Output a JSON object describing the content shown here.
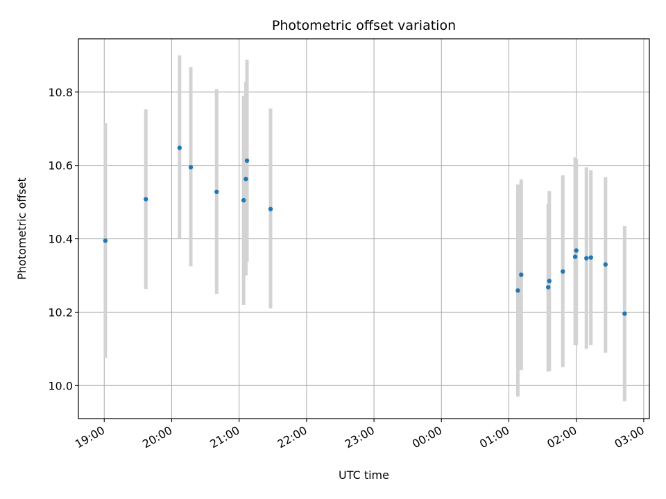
{
  "chart_data": {
    "type": "scatter",
    "title": "Photometric offset variation",
    "xlabel": "UTC time",
    "ylabel": "Photometric offset",
    "xlim": [
      "18:37",
      "03:05"
    ],
    "ylim": [
      9.91,
      10.945
    ],
    "grid": true,
    "x_ticks": [
      "19:00",
      "20:00",
      "21:00",
      "22:00",
      "23:00",
      "00:00",
      "01:00",
      "02:00",
      "03:00"
    ],
    "y_ticks": [
      "10.0",
      "10.2",
      "10.4",
      "10.6",
      "10.8"
    ],
    "colors": {
      "points": "#1f77b4",
      "error_bars": "#d3d3d3",
      "grid": "#b0b0b0"
    },
    "series": [
      {
        "points": [
          {
            "x": "19:01",
            "y": 10.395,
            "y_low": 10.075,
            "y_high": 10.715
          },
          {
            "x": "19:37",
            "y": 10.508,
            "y_low": 10.263,
            "y_high": 10.753
          },
          {
            "x": "20:07",
            "y": 10.648,
            "y_low": 10.4,
            "y_high": 10.9
          },
          {
            "x": "20:17",
            "y": 10.595,
            "y_low": 10.325,
            "y_high": 10.868
          },
          {
            "x": "20:40",
            "y": 10.528,
            "y_low": 10.25,
            "y_high": 10.808
          },
          {
            "x": "21:04",
            "y": 10.505,
            "y_low": 10.22,
            "y_high": 10.79
          },
          {
            "x": "21:06",
            "y": 10.563,
            "y_low": 10.3,
            "y_high": 10.828
          },
          {
            "x": "21:07",
            "y": 10.613,
            "y_low": 10.337,
            "y_high": 10.888
          },
          {
            "x": "21:28",
            "y": 10.481,
            "y_low": 10.21,
            "y_high": 10.755
          },
          {
            "x": "01:08",
            "y": 10.259,
            "y_low": 9.97,
            "y_high": 10.548
          },
          {
            "x": "01:11",
            "y": 10.302,
            "y_low": 10.042,
            "y_high": 10.562
          },
          {
            "x": "01:35",
            "y": 10.268,
            "y_low": 10.038,
            "y_high": 10.495
          },
          {
            "x": "01:36",
            "y": 10.285,
            "y_low": 10.04,
            "y_high": 10.53
          },
          {
            "x": "01:48",
            "y": 10.311,
            "y_low": 10.05,
            "y_high": 10.573
          },
          {
            "x": "01:59",
            "y": 10.351,
            "y_low": 10.11,
            "y_high": 10.622
          },
          {
            "x": "02:00",
            "y": 10.368,
            "y_low": 10.11,
            "y_high": 10.618
          },
          {
            "x": "02:09",
            "y": 10.347,
            "y_low": 10.1,
            "y_high": 10.595
          },
          {
            "x": "02:13",
            "y": 10.349,
            "y_low": 10.11,
            "y_high": 10.587
          },
          {
            "x": "02:26",
            "y": 10.33,
            "y_low": 10.09,
            "y_high": 10.568
          },
          {
            "x": "02:43",
            "y": 10.196,
            "y_low": 9.957,
            "y_high": 10.435
          }
        ]
      }
    ]
  }
}
